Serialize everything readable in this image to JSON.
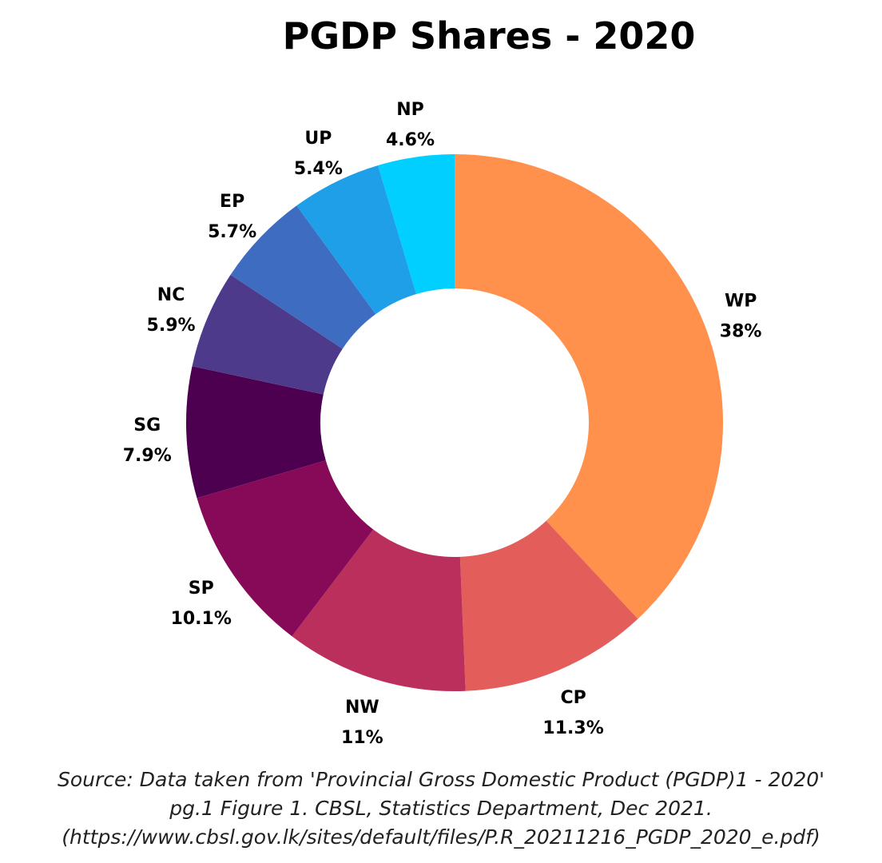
{
  "chart_data": {
    "type": "pie",
    "donut": true,
    "title": "PGDP Shares - 2020",
    "start_angle_deg": 0,
    "direction": "clockwise",
    "legend": "none",
    "slices": [
      {
        "label": "WP",
        "value": 38,
        "value_label": "38%",
        "color": "#FF914D"
      },
      {
        "label": "CP",
        "value": 11.3,
        "value_label": "11.3%",
        "color": "#E35D5A"
      },
      {
        "label": "NW",
        "value": 11,
        "value_label": "11%",
        "color": "#BA2F5B"
      },
      {
        "label": "SP",
        "value": 10.1,
        "value_label": "10.1%",
        "color": "#870A59"
      },
      {
        "label": "SG",
        "value": 7.9,
        "value_label": "7.9%",
        "color": "#4D004F"
      },
      {
        "label": "NC",
        "value": 5.9,
        "value_label": "5.9%",
        "color": "#4E3A8B"
      },
      {
        "label": "EP",
        "value": 5.7,
        "value_label": "5.7%",
        "color": "#3E6CC1"
      },
      {
        "label": "UP",
        "value": 5.4,
        "value_label": "5.4%",
        "color": "#1E9FE8"
      },
      {
        "label": "NP",
        "value": 4.6,
        "value_label": "4.6%",
        "color": "#00CFFF"
      }
    ]
  },
  "source": {
    "line1": "Source: Data taken from 'Provincial Gross Domestic Product (PGDP)1 - 2020'",
    "line2": "pg.1 Figure 1. CBSL, Statistics Department, Dec 2021.",
    "line3": "(https://www.cbsl.gov.lk/sites/default/files/P.R_20211216_PGDP_2020_e.pdf)"
  }
}
